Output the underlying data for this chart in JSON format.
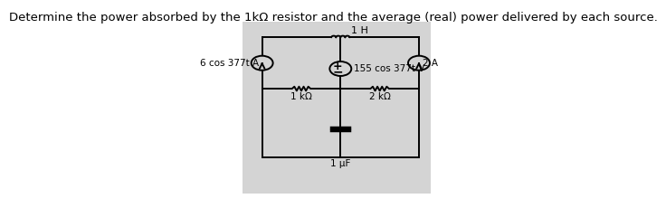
{
  "title": "Determine the power absorbed by the 1kΩ resistor and the average (real) power delivered by each source.",
  "bg_color": "#d4d4d4",
  "line_color": "#000000",
  "fig_bg": "#ffffff",
  "title_fontsize": 9.5,
  "circuit": {
    "left_source_label": "6 cos 377t A",
    "right_source_label": "2 A",
    "voltage_source_label": "155 cos 377t V",
    "inductor_label": "1 H",
    "resistor1_label": "1 kΩ",
    "resistor2_label": "2 kΩ",
    "capacitor_label": "1 μF"
  }
}
